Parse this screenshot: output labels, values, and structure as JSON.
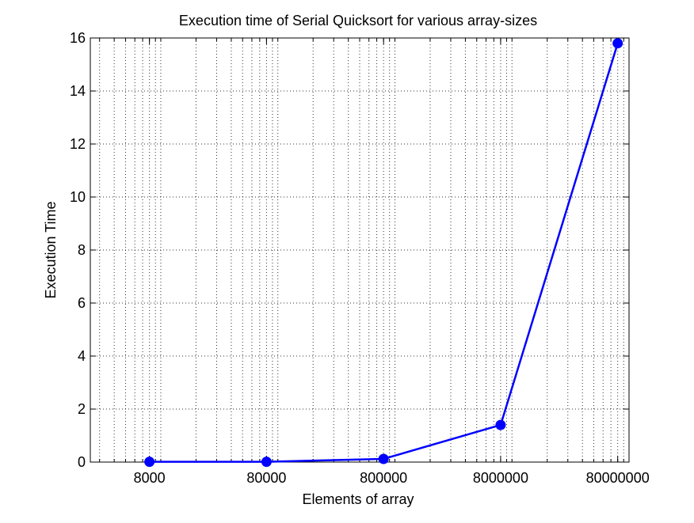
{
  "chart_data": {
    "type": "line",
    "title": "Execution time of Serial Quicksort for various array-sizes",
    "xlabel": "Elements of array",
    "ylabel": "Execution Time",
    "x_scale": "log",
    "xlim": [
      2500,
      100000000
    ],
    "ylim": [
      0,
      16
    ],
    "x_ticks": [
      8000,
      80000,
      800000,
      8000000,
      80000000
    ],
    "x_tick_labels": [
      "8000",
      "80000",
      "800000",
      "8000000",
      "80000000"
    ],
    "y_ticks": [
      0,
      2,
      4,
      6,
      8,
      10,
      12,
      14,
      16
    ],
    "y_tick_labels": [
      "0",
      "2",
      "4",
      "6",
      "8",
      "10",
      "12",
      "14",
      "16"
    ],
    "grid": true,
    "legend": "none",
    "series": [
      {
        "x": [
          8000,
          80000,
          800000,
          8000000,
          80000000
        ],
        "values": [
          0.01,
          0.01,
          0.12,
          1.4,
          15.8
        ],
        "color": "#0000ff",
        "marker": "circle"
      }
    ]
  }
}
